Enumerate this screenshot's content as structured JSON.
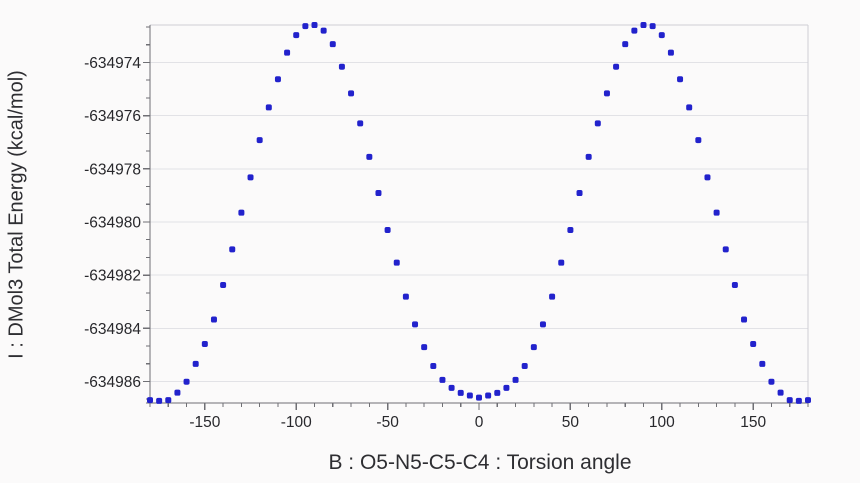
{
  "figure": {
    "background": "#fbfafa"
  },
  "chart_data": {
    "type": "scatter",
    "title": "",
    "xlabel": "B : O5-N5-C5-C4 : Torsion angle",
    "ylabel": "I : DMol3 Total Energy (kcal/mol)",
    "legend": "none",
    "marker": {
      "shape": "rounded-square",
      "color": "#2222cc",
      "size": 6
    },
    "xlim": [
      -180,
      180
    ],
    "ylim": [
      -634986.81,
      -634972.59
    ],
    "x_ticks": {
      "values": [
        -150,
        -100,
        -50,
        0,
        50,
        100,
        150
      ],
      "labels": [
        "-150",
        "-100",
        "-50",
        "0",
        "50",
        "100",
        "150"
      ],
      "minor_step": 10
    },
    "y_ticks": {
      "values": [
        -634974,
        -634976,
        -634978,
        -634980,
        -634982,
        -634984,
        -634986
      ],
      "labels": [
        "-634974",
        "-634976",
        "-634978",
        "-634980",
        "-634982",
        "-634984",
        "-634986"
      ],
      "minor_step": 0.6667
    },
    "grid": {
      "horizontal_major": true,
      "vertical": false
    },
    "colors": {
      "grid": "#e2e2e6",
      "axis": "#6f6f74",
      "frame": "#cfcfd4",
      "text": "#28282c",
      "marker": "#2222cc"
    },
    "x": [
      -180,
      -175,
      -170,
      -165,
      -160,
      -155,
      -150,
      -145,
      -140,
      -135,
      -130,
      -125,
      -120,
      -115,
      -110,
      -105,
      -100,
      -95,
      -90,
      -85,
      -80,
      -75,
      -70,
      -65,
      -60,
      -55,
      -50,
      -45,
      -40,
      -35,
      -30,
      -25,
      -20,
      -15,
      -10,
      -5,
      0,
      5,
      10,
      15,
      20,
      25,
      30,
      35,
      40,
      45,
      50,
      55,
      60,
      65,
      70,
      75,
      80,
      85,
      90,
      95,
      100,
      105,
      110,
      115,
      120,
      125,
      130,
      135,
      140,
      145,
      150,
      155,
      160,
      165,
      170,
      175,
      180
    ],
    "y": [
      -634986.7,
      -634986.73,
      -634986.7,
      -634986.42,
      -634986.01,
      -634985.34,
      -634984.59,
      -634983.67,
      -634982.37,
      -634981.03,
      -634979.65,
      -634978.32,
      -634976.92,
      -634975.69,
      -634974.63,
      -634973.63,
      -634972.97,
      -634972.63,
      -634972.59,
      -634972.8,
      -634973.31,
      -634974.16,
      -634975.16,
      -634976.29,
      -634977.55,
      -634978.91,
      -634980.3,
      -634981.53,
      -634982.81,
      -634983.85,
      -634984.71,
      -634985.42,
      -634985.94,
      -634986.24,
      -634986.43,
      -634986.53,
      -634986.61,
      -634986.53,
      -634986.43,
      -634986.24,
      -634985.94,
      -634985.42,
      -634984.71,
      -634983.85,
      -634982.81,
      -634981.53,
      -634980.3,
      -634978.91,
      -634977.55,
      -634976.29,
      -634975.16,
      -634974.16,
      -634973.31,
      -634972.8,
      -634972.59,
      -634972.63,
      -634972.97,
      -634973.63,
      -634974.63,
      -634975.69,
      -634976.92,
      -634978.32,
      -634979.65,
      -634981.03,
      -634982.37,
      -634983.67,
      -634984.59,
      -634985.34,
      -634986.01,
      -634986.42,
      -634986.7,
      -634986.73,
      -634986.7
    ]
  }
}
